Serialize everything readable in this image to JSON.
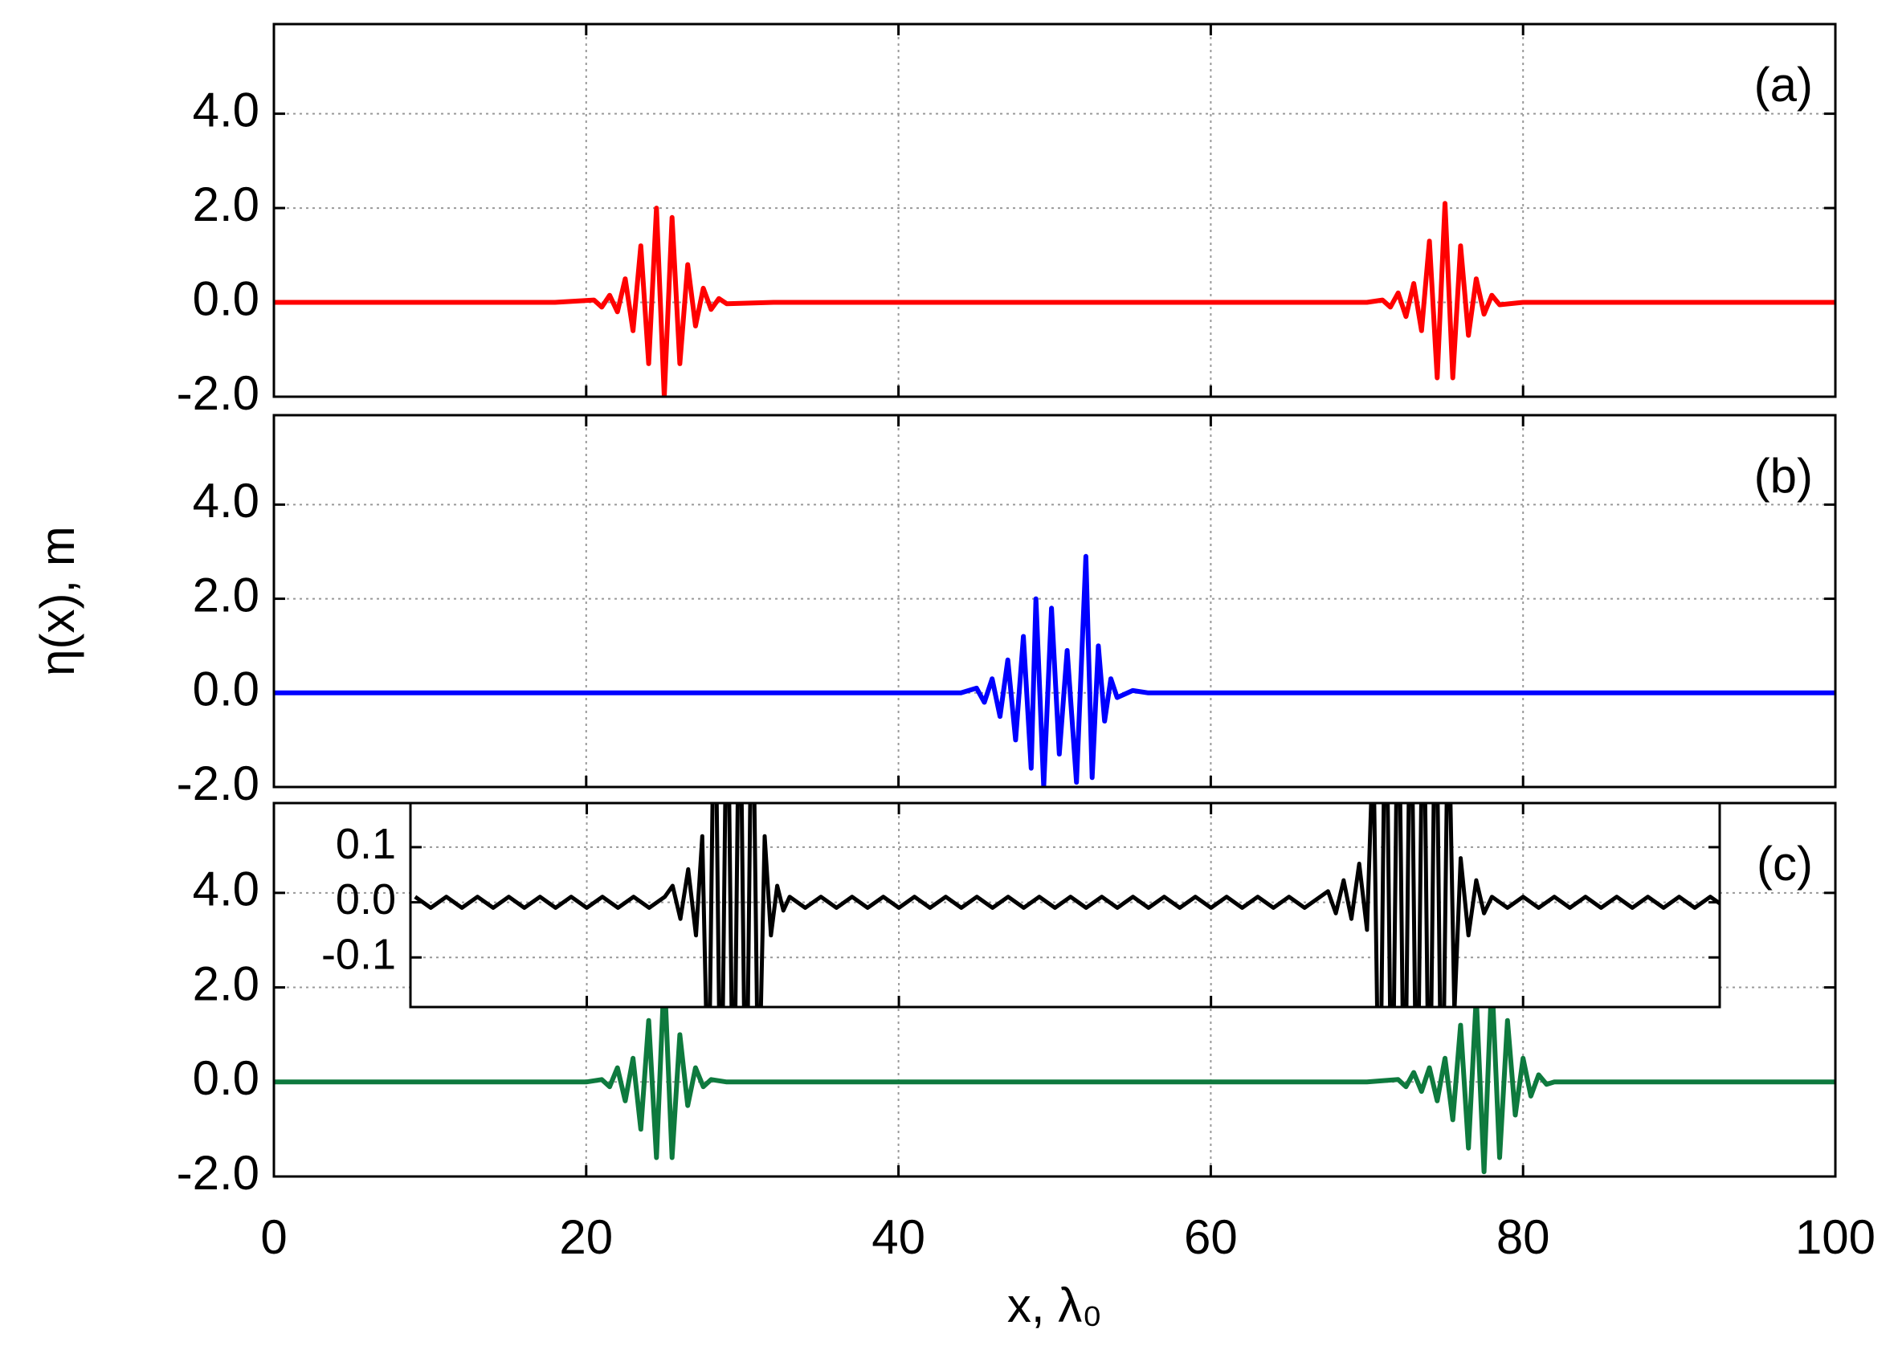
{
  "chart_data": [
    {
      "type": "line",
      "label": "(a)",
      "color": "#ff0000",
      "xlim": [
        0,
        100
      ],
      "xticks": [
        0,
        20,
        40,
        60,
        80,
        100
      ],
      "ylim": [
        -2,
        5.9
      ],
      "yticks": [
        {
          "value": -2,
          "label": "-2.0"
        },
        {
          "value": 0,
          "label": "0.0"
        },
        {
          "value": 2,
          "label": "2.0"
        },
        {
          "value": 4,
          "label": "4.0"
        }
      ],
      "grid": true,
      "x": [
        0,
        18,
        20.5,
        21,
        21.5,
        22,
        22.5,
        23,
        23.5,
        24,
        24.5,
        25,
        25.5,
        26,
        26.5,
        27,
        27.5,
        28,
        28.5,
        29,
        32,
        70,
        71,
        71.5,
        72,
        72.5,
        73,
        73.5,
        74,
        74.5,
        75,
        75.5,
        76,
        76.5,
        77,
        77.5,
        78,
        78.5,
        80,
        100
      ],
      "values": [
        0,
        0,
        0.05,
        -0.1,
        0.15,
        -0.2,
        0.5,
        -0.6,
        1.2,
        -1.3,
        2.0,
        -2.0,
        1.8,
        -1.3,
        0.8,
        -0.5,
        0.3,
        -0.15,
        0.08,
        -0.03,
        0,
        0,
        0.05,
        -0.1,
        0.2,
        -0.3,
        0.4,
        -0.6,
        1.3,
        -1.6,
        2.1,
        -1.6,
        1.2,
        -0.7,
        0.5,
        -0.25,
        0.15,
        -0.05,
        0,
        0
      ]
    },
    {
      "type": "line",
      "label": "(b)",
      "color": "#0000ff",
      "ylabel": "η(x), m",
      "xlim": [
        0,
        100
      ],
      "xticks": [
        0,
        20,
        40,
        60,
        80,
        100
      ],
      "ylim": [
        -2,
        5.9
      ],
      "yticks": [
        {
          "value": -2,
          "label": "-2.0"
        },
        {
          "value": 0,
          "label": "0.0"
        },
        {
          "value": 2,
          "label": "2.0"
        },
        {
          "value": 4,
          "label": "4.0"
        }
      ],
      "grid": true,
      "x": [
        0,
        44,
        45,
        45.5,
        46,
        46.5,
        47,
        47.5,
        48,
        48.5,
        48.8,
        49.3,
        49.8,
        50.3,
        50.8,
        51.4,
        52,
        52.4,
        52.8,
        53.2,
        53.6,
        54,
        55,
        56,
        100
      ],
      "values": [
        0,
        0,
        0.1,
        -0.2,
        0.3,
        -0.5,
        0.7,
        -1.0,
        1.2,
        -1.6,
        2.0,
        -2.0,
        1.8,
        -1.3,
        0.9,
        -1.9,
        2.9,
        -1.8,
        1.0,
        -0.6,
        0.3,
        -0.1,
        0.05,
        0,
        0
      ]
    },
    {
      "type": "line",
      "label": "(c)",
      "color": "#0e7a3e",
      "xlabel": "x, λ₀",
      "xtick_labels": true,
      "xlim": [
        0,
        100
      ],
      "xticks": [
        0,
        20,
        40,
        60,
        80,
        100
      ],
      "ylim": [
        -2,
        5.9
      ],
      "yticks": [
        {
          "value": -2,
          "label": "-2.0"
        },
        {
          "value": 0,
          "label": "0.0"
        },
        {
          "value": 2,
          "label": "2.0"
        },
        {
          "value": 4,
          "label": "4.0"
        }
      ],
      "grid": true,
      "x": [
        0,
        20,
        21,
        21.5,
        22,
        22.5,
        23,
        23.5,
        24,
        24.5,
        25,
        25.5,
        26,
        26.5,
        27,
        27.5,
        28,
        29,
        70,
        72,
        72.5,
        73,
        73.5,
        74,
        74.5,
        75,
        75.5,
        76,
        76.5,
        77,
        77.5,
        78,
        78.5,
        79,
        79.5,
        80,
        80.5,
        81,
        81.5,
        82,
        100
      ],
      "values": [
        0,
        0,
        0.05,
        -0.1,
        0.3,
        -0.4,
        0.5,
        -1.0,
        1.3,
        -1.6,
        2.3,
        -1.6,
        1.0,
        -0.5,
        0.3,
        -0.1,
        0.05,
        0,
        0,
        0.05,
        -0.1,
        0.2,
        -0.2,
        0.3,
        -0.4,
        0.5,
        -0.8,
        1.2,
        -1.4,
        1.8,
        -1.9,
        2.2,
        -1.6,
        1.3,
        -0.7,
        0.5,
        -0.3,
        0.15,
        -0.05,
        0,
        0
      ]
    },
    {
      "type": "line",
      "color": "#000000",
      "xlim": [
        8.7,
        92.6
      ],
      "xticks": [
        20,
        40,
        60,
        80
      ],
      "ylim": [
        -0.19,
        0.18
      ],
      "yticks": [
        -0.1,
        {
          "value": 0,
          "label": "0.0"
        },
        0.1
      ],
      "grid": true,
      "x": [
        9,
        10,
        11,
        12,
        13,
        14,
        15,
        16,
        17,
        18,
        19,
        20,
        21,
        22,
        23,
        24,
        25,
        25.5,
        26,
        26.5,
        27,
        27.4,
        27.8,
        28.2,
        28.6,
        29,
        29.4,
        29.8,
        30.2,
        30.6,
        31,
        31.4,
        31.8,
        32.2,
        32.6,
        33,
        34,
        35,
        36,
        37,
        38,
        39,
        40,
        41,
        42,
        43,
        44,
        45,
        46,
        47,
        48,
        49,
        50,
        51,
        52,
        53,
        54,
        55,
        56,
        57,
        58,
        59,
        60,
        61,
        62,
        63,
        64,
        65,
        66,
        67,
        67.5,
        68,
        68.5,
        69,
        69.5,
        70,
        70.4,
        70.8,
        71.2,
        71.6,
        72,
        72.4,
        72.8,
        73.2,
        73.6,
        74,
        74.4,
        74.8,
        75.2,
        75.6,
        76,
        76.5,
        77,
        77.5,
        78,
        79,
        80,
        81,
        82,
        83,
        84,
        85,
        86,
        87,
        88,
        89,
        90,
        91,
        92,
        93
      ],
      "values": [
        0.01,
        -0.01,
        0.01,
        -0.01,
        0.01,
        -0.01,
        0.01,
        -0.01,
        0.01,
        -0.01,
        0.01,
        -0.01,
        0.01,
        -0.01,
        0.01,
        -0.01,
        0.01,
        0.03,
        -0.03,
        0.06,
        -0.06,
        0.12,
        -0.4,
        0.5,
        -0.5,
        0.5,
        -0.5,
        0.5,
        -0.5,
        0.5,
        -0.4,
        0.12,
        -0.06,
        0.03,
        -0.015,
        0.01,
        -0.01,
        0.01,
        -0.01,
        0.01,
        -0.01,
        0.01,
        -0.01,
        0.01,
        -0.01,
        0.01,
        -0.01,
        0.01,
        -0.01,
        0.01,
        -0.01,
        0.01,
        -0.01,
        0.01,
        -0.01,
        0.01,
        -0.01,
        0.01,
        -0.01,
        0.01,
        -0.01,
        0.01,
        -0.01,
        0.01,
        -0.01,
        0.01,
        -0.01,
        0.01,
        -0.01,
        0.01,
        0.02,
        -0.02,
        0.04,
        -0.03,
        0.07,
        -0.05,
        0.3,
        -0.5,
        0.5,
        -0.5,
        0.5,
        -0.5,
        0.5,
        -0.5,
        0.5,
        -0.5,
        0.5,
        -0.5,
        0.4,
        -0.2,
        0.08,
        -0.06,
        0.04,
        -0.02,
        0.01,
        -0.01,
        0.01,
        -0.01,
        0.01,
        -0.01,
        0.01,
        -0.01,
        0.01,
        -0.01,
        0.01,
        -0.01,
        0.01,
        -0.01,
        0.01,
        -0.01
      ]
    }
  ]
}
